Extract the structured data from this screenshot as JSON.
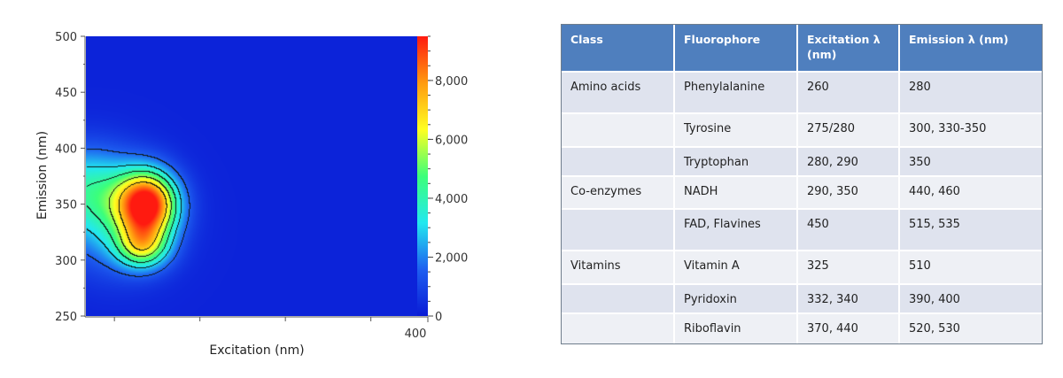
{
  "chart_data": {
    "type": "heatmap",
    "subtype": "excitation-emission contour map",
    "title": "",
    "xlabel": "Excitation (nm)",
    "ylabel": "Emission (nm)",
    "xlim": [
      250,
      400
    ],
    "ylim": [
      250,
      500
    ],
    "x_tick_labels": [
      "400"
    ],
    "y_ticks": [
      250,
      300,
      350,
      400,
      450,
      500
    ],
    "colorbar": {
      "range": [
        0,
        9500
      ],
      "ticks": [
        0,
        2000,
        4000,
        6000,
        8000
      ],
      "tick_labels": [
        "0",
        "2,000",
        "4,000",
        "6,000",
        "8,000"
      ],
      "colors": [
        "#0a1bd6",
        "#1e5ff0",
        "#22e8ef",
        "#3cff7a",
        "#ffff20",
        "#ff9a10",
        "#ff1a10"
      ]
    },
    "peaks": [
      {
        "excitation": 277,
        "emission": 350,
        "intensity": 9500,
        "sx": 9,
        "sy": 20
      },
      {
        "excitation": 275,
        "emission": 312,
        "intensity": 4700,
        "sx": 8,
        "sy": 14
      },
      {
        "excitation": 250,
        "emission": 365,
        "intensity": 3400,
        "sx": 16,
        "sy": 26
      },
      {
        "excitation": 263,
        "emission": 330,
        "intensity": 2300,
        "sx": 16,
        "sy": 30
      }
    ],
    "contour_levels": [
      1500,
      3000,
      4300,
      5800,
      7300
    ],
    "background_color": "#0d2ed9"
  },
  "table": {
    "headers": [
      "Class",
      "Fluorophore",
      "Excitation λ (nm)",
      "Emission λ (nm)"
    ],
    "rows": [
      {
        "class": "Amino acids",
        "fluorophore": "Phenylalanine",
        "excitation": "260",
        "emission": "280"
      },
      {
        "class": "",
        "fluorophore": "Tyrosine",
        "excitation": "275/280",
        "emission": "300, 330-350"
      },
      {
        "class": "",
        "fluorophore": "Tryptophan",
        "excitation": "280, 290",
        "emission": "350"
      },
      {
        "class": "Co-enzymes",
        "fluorophore": "NADH",
        "excitation": "290, 350",
        "emission": "440, 460"
      },
      {
        "class": "",
        "fluorophore": "FAD, Flavines",
        "excitation": "450",
        "emission": "515, 535"
      },
      {
        "class": "Vitamins",
        "fluorophore": "Vitamin A",
        "excitation": "325",
        "emission": "510"
      },
      {
        "class": "",
        "fluorophore": "Pyridoxin",
        "excitation": "332, 340",
        "emission": "390, 400"
      },
      {
        "class": "",
        "fluorophore": "Riboflavin",
        "excitation": "370, 440",
        "emission": "520, 530"
      }
    ]
  }
}
